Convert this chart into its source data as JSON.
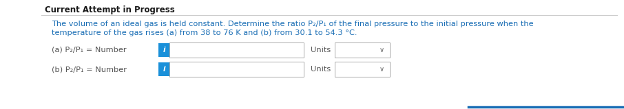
{
  "title": "Current Attempt in Progress",
  "title_fontsize": 8.5,
  "title_fontweight": "bold",
  "title_color": "#1a1a1a",
  "body_text_line1": "The volume of an ideal gas is held constant. Determine the ratio P₂/P₁ of the final pressure to the initial pressure when the",
  "body_text_line2": "temperature of the gas rises (a) from 38 to 76 K and (b) from 30.1 to 54.3 °C.",
  "body_color": "#1a6eb5",
  "body_fontsize": 8.2,
  "label_a": "(a) P₂/P₁ = Number",
  "label_b": "(b) P₂/P₁ = Number",
  "label_color": "#555555",
  "label_fontsize": 8.2,
  "info_btn_color": "#1a90d9",
  "info_btn_text": "i",
  "info_btn_text_color": "#ffffff",
  "info_btn_fontsize": 7.5,
  "units_text": "Units",
  "units_color": "#555555",
  "units_fontsize": 8.2,
  "input_box_color": "#ffffff",
  "input_box_border": "#aaaaaa",
  "dropdown_box_color": "#ffffff",
  "dropdown_border": "#aaaaaa",
  "dropdown_arrow": "∨",
  "background_color": "#ffffff",
  "separator_color": "#cccccc",
  "bottom_line_color": "#1a6eb5"
}
